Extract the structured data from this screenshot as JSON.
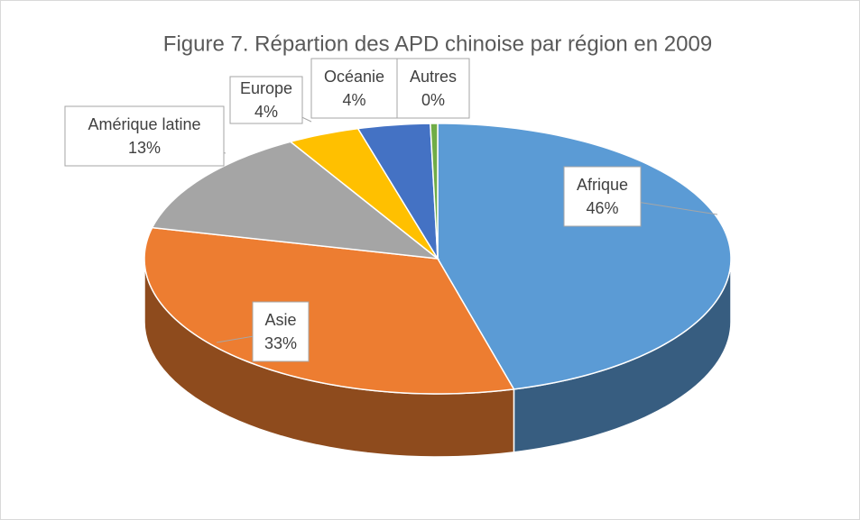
{
  "chart_data": {
    "type": "pie3d",
    "title": "Figure 7. Répartion des APD chinoise  par région en 2009",
    "categories": [
      "Afrique",
      "Asie",
      "Amérique latine",
      "Europe",
      "Océanie",
      "Autres"
    ],
    "values": [
      46,
      33,
      13,
      4,
      4,
      0.4
    ],
    "value_labels": [
      "46%",
      "33%",
      "13%",
      "4%",
      "4%",
      "0%"
    ],
    "colors": [
      "#5b9bd5",
      "#ed7d31",
      "#a5a5a5",
      "#ffc000",
      "#4472c4",
      "#70ad47"
    ]
  }
}
